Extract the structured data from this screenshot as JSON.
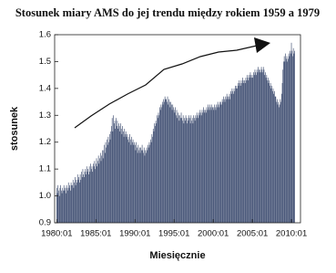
{
  "chart_data": {
    "type": "bar",
    "title": "Stosunek miary AMS do jej trendu między rokiem 1959 a 1979",
    "x_label": "Miesięcznie",
    "y_label": "stosunek",
    "color": "#3d4c70",
    "ylim": [
      0.9,
      1.6
    ],
    "yticks": [
      0.9,
      {
        "value": 1,
        "label": "1.0"
      },
      1.1,
      1.2,
      1.3,
      1.4,
      1.5,
      1.6
    ],
    "categories": [
      "1980:01",
      null,
      null,
      null,
      null,
      null,
      null,
      null,
      null,
      null,
      null,
      null,
      null,
      null,
      null,
      null,
      null,
      null,
      null,
      null,
      null,
      null,
      null,
      null,
      null,
      null,
      null,
      null,
      null,
      null,
      null,
      null,
      null,
      null,
      null,
      null,
      null,
      null,
      null,
      null,
      null,
      null,
      null,
      null,
      null,
      null,
      null,
      null,
      null,
      null,
      null,
      null,
      null,
      null,
      null,
      null,
      null,
      null,
      null,
      null,
      "1985:01",
      null,
      null,
      null,
      null,
      null,
      null,
      null,
      null,
      null,
      null,
      null,
      null,
      null,
      null,
      null,
      null,
      null,
      null,
      null,
      null,
      null,
      null,
      null,
      null,
      null,
      null,
      null,
      null,
      null,
      null,
      null,
      null,
      null,
      null,
      null,
      null,
      null,
      null,
      null,
      null,
      null,
      null,
      null,
      null,
      null,
      null,
      null,
      null,
      null,
      null,
      null,
      null,
      null,
      null,
      null,
      null,
      null,
      null,
      null,
      "1990:01",
      null,
      null,
      null,
      null,
      null,
      null,
      null,
      null,
      null,
      null,
      null,
      null,
      null,
      null,
      null,
      null,
      null,
      null,
      null,
      null,
      null,
      null,
      null,
      null,
      null,
      null,
      null,
      null,
      null,
      null,
      null,
      null,
      null,
      null,
      null,
      null,
      null,
      null,
      null,
      null,
      null,
      null,
      null,
      null,
      null,
      null,
      null,
      null,
      null,
      null,
      null,
      null,
      null,
      null,
      null,
      null,
      null,
      null,
      null,
      "1995:01",
      null,
      null,
      null,
      null,
      null,
      null,
      null,
      null,
      null,
      null,
      null,
      null,
      null,
      null,
      null,
      null,
      null,
      null,
      null,
      null,
      null,
      null,
      null,
      null,
      null,
      null,
      null,
      null,
      null,
      null,
      null,
      null,
      null,
      null,
      null,
      null,
      null,
      null,
      null,
      null,
      null,
      null,
      null,
      null,
      null,
      null,
      null,
      null,
      null,
      null,
      null,
      null,
      null,
      null,
      null,
      null,
      null,
      null,
      null,
      "2000:01",
      null,
      null,
      null,
      null,
      null,
      null,
      null,
      null,
      null,
      null,
      null,
      null,
      null,
      null,
      null,
      null,
      null,
      null,
      null,
      null,
      null,
      null,
      null,
      null,
      null,
      null,
      null,
      null,
      null,
      null,
      null,
      null,
      null,
      null,
      null,
      null,
      null,
      null,
      null,
      null,
      null,
      null,
      null,
      null,
      null,
      null,
      null,
      null,
      null,
      null,
      null,
      null,
      null,
      null,
      null,
      null,
      null,
      null,
      null,
      "2005:01",
      null,
      null,
      null,
      null,
      null,
      null,
      null,
      null,
      null,
      null,
      null,
      null,
      null,
      null,
      null,
      null,
      null,
      null,
      null,
      null,
      null,
      null,
      null,
      null,
      null,
      null,
      null,
      null,
      null,
      null,
      null,
      null,
      null,
      null,
      null,
      null,
      null,
      null,
      null,
      null,
      null,
      null,
      null,
      null,
      null,
      null,
      null,
      null,
      null,
      null,
      null,
      null,
      null,
      null,
      null,
      null,
      null,
      null,
      null,
      "2010:01",
      null,
      null,
      null,
      null,
      null
    ],
    "values": [
      1.03,
      1.01,
      1.04,
      1.02,
      1.0,
      1.03,
      1.04,
      1.02,
      1.01,
      1.03,
      1.02,
      1.04,
      1.02,
      1.03,
      1.01,
      1.04,
      1.03,
      1.02,
      1.05,
      1.03,
      1.04,
      1.02,
      1.05,
      1.04,
      1.04,
      1.06,
      1.03,
      1.05,
      1.07,
      1.04,
      1.06,
      1.05,
      1.08,
      1.06,
      1.07,
      1.05,
      1.08,
      1.06,
      1.09,
      1.07,
      1.1,
      1.08,
      1.07,
      1.09,
      1.1,
      1.08,
      1.11,
      1.09,
      1.1,
      1.08,
      1.11,
      1.09,
      1.12,
      1.1,
      1.11,
      1.09,
      1.12,
      1.11,
      1.13,
      1.1,
      1.12,
      1.14,
      1.11,
      1.13,
      1.15,
      1.12,
      1.14,
      1.16,
      1.13,
      1.15,
      1.17,
      1.14,
      1.17,
      1.19,
      1.16,
      1.2,
      1.18,
      1.21,
      1.19,
      1.22,
      1.2,
      1.23,
      1.21,
      1.24,
      1.26,
      1.29,
      1.24,
      1.3,
      1.27,
      1.28,
      1.25,
      1.29,
      1.26,
      1.28,
      1.25,
      1.27,
      1.26,
      1.24,
      1.27,
      1.25,
      1.23,
      1.26,
      1.24,
      1.22,
      1.25,
      1.23,
      1.24,
      1.22,
      1.23,
      1.21,
      1.22,
      1.2,
      1.23,
      1.21,
      1.19,
      1.22,
      1.2,
      1.21,
      1.19,
      1.2,
      1.19,
      1.17,
      1.2,
      1.18,
      1.16,
      1.19,
      1.17,
      1.18,
      1.16,
      1.18,
      1.17,
      1.19,
      1.17,
      1.16,
      1.18,
      1.15,
      1.17,
      1.16,
      1.18,
      1.17,
      1.19,
      1.18,
      1.2,
      1.19,
      1.21,
      1.2,
      1.23,
      1.22,
      1.25,
      1.24,
      1.27,
      1.26,
      1.28,
      1.27,
      1.3,
      1.29,
      1.31,
      1.3,
      1.33,
      1.32,
      1.34,
      1.33,
      1.35,
      1.34,
      1.36,
      1.35,
      1.37,
      1.36,
      1.36,
      1.35,
      1.37,
      1.34,
      1.36,
      1.35,
      1.33,
      1.35,
      1.34,
      1.32,
      1.34,
      1.33,
      1.32,
      1.31,
      1.33,
      1.3,
      1.32,
      1.29,
      1.31,
      1.3,
      1.28,
      1.3,
      1.29,
      1.31,
      1.29,
      1.28,
      1.3,
      1.27,
      1.29,
      1.28,
      1.3,
      1.29,
      1.27,
      1.29,
      1.28,
      1.3,
      1.29,
      1.27,
      1.3,
      1.28,
      1.29,
      1.27,
      1.3,
      1.29,
      1.28,
      1.3,
      1.29,
      1.31,
      1.3,
      1.29,
      1.31,
      1.3,
      1.32,
      1.31,
      1.3,
      1.32,
      1.31,
      1.33,
      1.32,
      1.31,
      1.32,
      1.31,
      1.33,
      1.32,
      1.34,
      1.33,
      1.32,
      1.34,
      1.33,
      1.32,
      1.34,
      1.33,
      1.33,
      1.32,
      1.34,
      1.33,
      1.32,
      1.34,
      1.33,
      1.35,
      1.34,
      1.33,
      1.35,
      1.34,
      1.35,
      1.34,
      1.36,
      1.35,
      1.37,
      1.36,
      1.35,
      1.37,
      1.36,
      1.38,
      1.37,
      1.36,
      1.37,
      1.38,
      1.36,
      1.39,
      1.38,
      1.4,
      1.39,
      1.38,
      1.4,
      1.39,
      1.41,
      1.4,
      1.41,
      1.4,
      1.42,
      1.41,
      1.43,
      1.42,
      1.41,
      1.43,
      1.42,
      1.44,
      1.43,
      1.42,
      1.43,
      1.42,
      1.44,
      1.43,
      1.45,
      1.44,
      1.43,
      1.45,
      1.44,
      1.46,
      1.45,
      1.44,
      1.45,
      1.44,
      1.46,
      1.45,
      1.47,
      1.46,
      1.45,
      1.47,
      1.46,
      1.48,
      1.47,
      1.46,
      1.47,
      1.46,
      1.48,
      1.47,
      1.46,
      1.48,
      1.47,
      1.45,
      1.46,
      1.44,
      1.45,
      1.43,
      1.44,
      1.42,
      1.43,
      1.41,
      1.42,
      1.4,
      1.41,
      1.39,
      1.4,
      1.38,
      1.39,
      1.37,
      1.37,
      1.35,
      1.36,
      1.34,
      1.35,
      1.33,
      1.34,
      1.36,
      1.35,
      1.38,
      1.42,
      1.47,
      1.5,
      1.52,
      1.5,
      1.53,
      1.51,
      1.52,
      1.5,
      1.51,
      1.53,
      1.52,
      1.54,
      1.53,
      1.57,
      1.54,
      1.52,
      1.55,
      1.53,
      1.54
    ]
  }
}
